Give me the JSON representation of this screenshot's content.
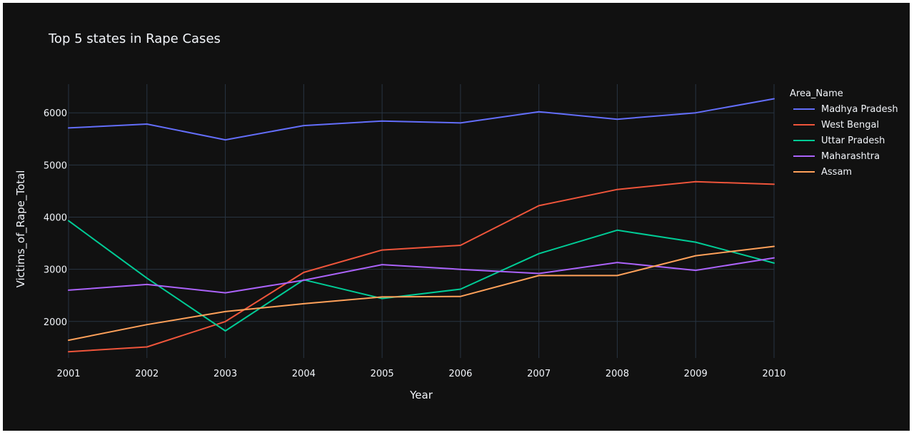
{
  "chart_data": {
    "type": "line",
    "title": "Top 5 states in Rape Cases",
    "xlabel": "Year",
    "ylabel": "Victims_of_Rape_Total",
    "x": [
      2001,
      2002,
      2003,
      2004,
      2005,
      2006,
      2007,
      2008,
      2009,
      2010
    ],
    "xlim": [
      2001,
      2010
    ],
    "ylim": [
      1300,
      6550
    ],
    "yticks": [
      2000,
      3000,
      4000,
      5000,
      6000
    ],
    "grid": true,
    "legend_title": "Area_Name",
    "legend_position": "right",
    "series": [
      {
        "name": "Madhya Pradesh",
        "color": "#636efa",
        "values": [
          5711,
          5785,
          5482,
          5756,
          5843,
          5806,
          6021,
          5878,
          6000,
          6270
        ]
      },
      {
        "name": "West Bengal",
        "color": "#ef553b",
        "values": [
          1420,
          1512,
          1999,
          2940,
          3370,
          3460,
          4220,
          4530,
          4680,
          4630
        ]
      },
      {
        "name": "Uttar Pradesh",
        "color": "#00cc96",
        "values": [
          3930,
          2830,
          1820,
          2800,
          2440,
          2620,
          3300,
          3750,
          3520,
          3120
        ]
      },
      {
        "name": "Maharashtra",
        "color": "#ab63fa",
        "values": [
          2600,
          2710,
          2550,
          2790,
          3090,
          3000,
          2920,
          3130,
          2980,
          3220
        ]
      },
      {
        "name": "Assam",
        "color": "#ffa15a",
        "values": [
          1640,
          1940,
          2190,
          2340,
          2470,
          2480,
          2880,
          2880,
          3260,
          3440
        ]
      }
    ]
  }
}
